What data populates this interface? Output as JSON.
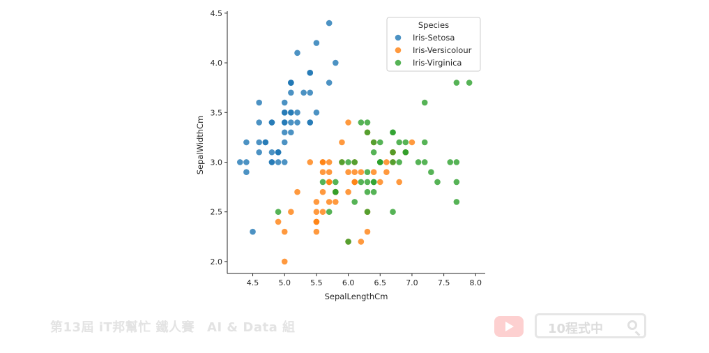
{
  "chart_data": {
    "type": "scatter",
    "xlabel": "SepalLengthCm",
    "ylabel": "SepalWidthCm",
    "xlim": [
      4.1,
      8.15
    ],
    "ylim": [
      1.88,
      4.52
    ],
    "xticks": [
      4.5,
      5.0,
      5.5,
      6.0,
      6.5,
      7.0,
      7.5,
      8.0
    ],
    "xtick_labels": [
      "4.5",
      "5.0",
      "5.5",
      "6.0",
      "6.5",
      "7.0",
      "7.5",
      "8.0"
    ],
    "yticks": [
      2.0,
      2.5,
      3.0,
      3.5,
      4.0,
      4.5
    ],
    "ytick_labels": [
      "2.0",
      "2.5",
      "3.0",
      "3.5",
      "4.0",
      "4.5"
    ],
    "grid": false,
    "legend": {
      "title": "Species",
      "position": "top-right"
    },
    "series": [
      {
        "name": "Iris-Setosa",
        "color": "#1f77b4",
        "points": [
          [
            5.1,
            3.5
          ],
          [
            4.9,
            3.0
          ],
          [
            4.7,
            3.2
          ],
          [
            4.6,
            3.1
          ],
          [
            5.0,
            3.6
          ],
          [
            5.4,
            3.9
          ],
          [
            4.6,
            3.4
          ],
          [
            5.0,
            3.4
          ],
          [
            4.4,
            2.9
          ],
          [
            4.9,
            3.1
          ],
          [
            5.4,
            3.7
          ],
          [
            4.8,
            3.4
          ],
          [
            4.8,
            3.0
          ],
          [
            4.3,
            3.0
          ],
          [
            5.8,
            4.0
          ],
          [
            5.7,
            4.4
          ],
          [
            5.4,
            3.9
          ],
          [
            5.1,
            3.5
          ],
          [
            5.7,
            3.8
          ],
          [
            5.1,
            3.8
          ],
          [
            5.4,
            3.4
          ],
          [
            5.1,
            3.7
          ],
          [
            4.6,
            3.6
          ],
          [
            5.1,
            3.3
          ],
          [
            4.8,
            3.4
          ],
          [
            5.0,
            3.0
          ],
          [
            5.0,
            3.4
          ],
          [
            5.2,
            3.5
          ],
          [
            5.2,
            3.4
          ],
          [
            4.7,
            3.2
          ],
          [
            4.8,
            3.1
          ],
          [
            5.4,
            3.4
          ],
          [
            5.2,
            4.1
          ],
          [
            5.5,
            4.2
          ],
          [
            4.9,
            3.1
          ],
          [
            5.0,
            3.2
          ],
          [
            5.5,
            3.5
          ],
          [
            4.9,
            3.1
          ],
          [
            4.4,
            3.0
          ],
          [
            5.1,
            3.4
          ],
          [
            5.0,
            3.5
          ],
          [
            4.5,
            2.3
          ],
          [
            4.4,
            3.2
          ],
          [
            5.0,
            3.5
          ],
          [
            5.1,
            3.8
          ],
          [
            4.8,
            3.0
          ],
          [
            5.1,
            3.8
          ],
          [
            4.6,
            3.2
          ],
          [
            5.3,
            3.7
          ],
          [
            5.0,
            3.3
          ]
        ]
      },
      {
        "name": "Iris-Versicolour",
        "color": "#ff7f0e",
        "points": [
          [
            7.0,
            3.2
          ],
          [
            6.4,
            3.2
          ],
          [
            6.9,
            3.1
          ],
          [
            5.5,
            2.3
          ],
          [
            6.5,
            2.8
          ],
          [
            5.7,
            2.8
          ],
          [
            6.3,
            3.3
          ],
          [
            4.9,
            2.4
          ],
          [
            6.6,
            2.9
          ],
          [
            5.2,
            2.7
          ],
          [
            5.0,
            2.0
          ],
          [
            5.9,
            3.0
          ],
          [
            6.0,
            2.2
          ],
          [
            6.1,
            2.9
          ],
          [
            5.6,
            2.9
          ],
          [
            6.7,
            3.1
          ],
          [
            5.6,
            3.0
          ],
          [
            5.8,
            2.7
          ],
          [
            6.2,
            2.2
          ],
          [
            5.6,
            2.5
          ],
          [
            5.9,
            3.2
          ],
          [
            6.1,
            2.8
          ],
          [
            6.3,
            2.5
          ],
          [
            6.1,
            2.8
          ],
          [
            6.4,
            2.9
          ],
          [
            6.6,
            3.0
          ],
          [
            6.8,
            2.8
          ],
          [
            6.7,
            3.0
          ],
          [
            6.0,
            2.9
          ],
          [
            5.7,
            2.6
          ],
          [
            5.5,
            2.4
          ],
          [
            5.5,
            2.4
          ],
          [
            5.8,
            2.7
          ],
          [
            6.0,
            2.7
          ],
          [
            5.4,
            3.0
          ],
          [
            6.0,
            3.4
          ],
          [
            6.7,
            3.1
          ],
          [
            6.3,
            2.3
          ],
          [
            5.6,
            3.0
          ],
          [
            5.5,
            2.5
          ],
          [
            5.5,
            2.6
          ],
          [
            6.1,
            3.0
          ],
          [
            5.8,
            2.6
          ],
          [
            5.0,
            2.3
          ],
          [
            5.6,
            2.7
          ],
          [
            5.7,
            3.0
          ],
          [
            5.7,
            2.9
          ],
          [
            6.2,
            2.9
          ],
          [
            5.1,
            2.5
          ],
          [
            5.7,
            2.8
          ]
        ]
      },
      {
        "name": "Iris-Virginica",
        "color": "#2ca02c",
        "points": [
          [
            6.3,
            3.3
          ],
          [
            5.8,
            2.7
          ],
          [
            7.1,
            3.0
          ],
          [
            6.3,
            2.9
          ],
          [
            6.5,
            3.0
          ],
          [
            7.6,
            3.0
          ],
          [
            4.9,
            2.5
          ],
          [
            7.3,
            2.9
          ],
          [
            6.7,
            2.5
          ],
          [
            7.2,
            3.6
          ],
          [
            6.5,
            3.2
          ],
          [
            6.4,
            2.7
          ],
          [
            6.8,
            3.0
          ],
          [
            5.7,
            2.5
          ],
          [
            5.8,
            2.8
          ],
          [
            6.4,
            3.2
          ],
          [
            6.5,
            3.0
          ],
          [
            7.7,
            3.8
          ],
          [
            7.7,
            2.6
          ],
          [
            6.0,
            2.2
          ],
          [
            6.9,
            3.2
          ],
          [
            5.6,
            2.8
          ],
          [
            7.7,
            2.8
          ],
          [
            6.3,
            2.7
          ],
          [
            6.7,
            3.3
          ],
          [
            7.2,
            3.2
          ],
          [
            6.2,
            2.8
          ],
          [
            6.1,
            3.0
          ],
          [
            6.4,
            2.8
          ],
          [
            7.2,
            3.0
          ],
          [
            7.4,
            2.8
          ],
          [
            7.9,
            3.8
          ],
          [
            6.4,
            2.8
          ],
          [
            6.3,
            2.8
          ],
          [
            6.1,
            2.6
          ],
          [
            7.7,
            3.0
          ],
          [
            6.3,
            3.4
          ],
          [
            6.4,
            3.1
          ],
          [
            6.0,
            3.0
          ],
          [
            6.9,
            3.1
          ],
          [
            6.7,
            3.1
          ],
          [
            6.9,
            3.1
          ],
          [
            5.8,
            2.7
          ],
          [
            6.8,
            3.2
          ],
          [
            6.7,
            3.3
          ],
          [
            6.7,
            3.0
          ],
          [
            6.3,
            2.5
          ],
          [
            6.5,
            3.0
          ],
          [
            6.2,
            3.4
          ],
          [
            5.9,
            3.0
          ]
        ]
      }
    ]
  },
  "footer": {
    "event_left": "第13屆 iT邦幫忙 鐵人賽",
    "event_right": "AI & Data 組",
    "search_text": "10程式中"
  }
}
